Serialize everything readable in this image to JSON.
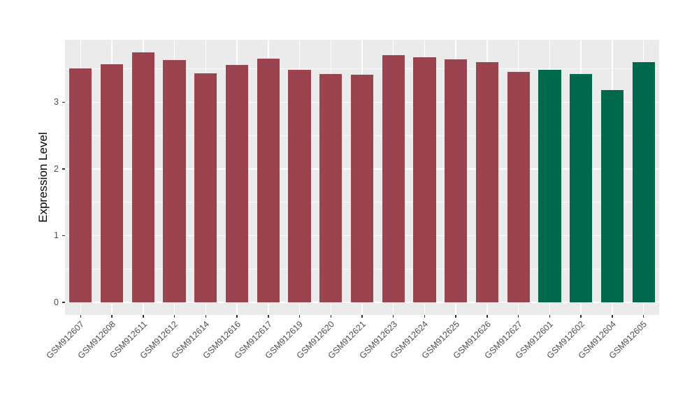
{
  "chart_data": {
    "type": "bar",
    "title": "",
    "xlabel": "",
    "ylabel": "Expression Level",
    "categories": [
      "GSM912607",
      "GSM912608",
      "GSM912611",
      "GSM912612",
      "GSM912614",
      "GSM912616",
      "GSM912617",
      "GSM912619",
      "GSM912620",
      "GSM912621",
      "GSM912623",
      "GSM912624",
      "GSM912625",
      "GSM912626",
      "GSM912627",
      "GSM912601",
      "GSM912602",
      "GSM912604",
      "GSM912605"
    ],
    "values": [
      3.51,
      3.57,
      3.75,
      3.63,
      3.43,
      3.56,
      3.65,
      3.49,
      3.42,
      3.41,
      3.71,
      3.68,
      3.64,
      3.6,
      3.46,
      3.49,
      3.42,
      3.18,
      3.6
    ],
    "bar_group_index": [
      0,
      0,
      0,
      0,
      0,
      0,
      0,
      0,
      0,
      0,
      0,
      0,
      0,
      0,
      0,
      1,
      1,
      1,
      1
    ],
    "group_colors": [
      "#9B4450",
      "#00694B"
    ],
    "yticks": [
      0,
      1,
      2,
      3
    ],
    "ytick_labels": [
      "0",
      "1",
      "2",
      "3"
    ],
    "minor_yticks": [
      0.5,
      1.5,
      2.5,
      3.5
    ],
    "ylim": [
      -0.19,
      3.94
    ],
    "grid": "on",
    "legend": "none",
    "x_tick_rotation_deg": 45,
    "bar_width_ratio": 0.72,
    "colors": {
      "figure_bg": "#FFFFFF",
      "panel_bg": "#EBEBEB",
      "grid": "#FFFFFF",
      "axis_text": "#4D4D4D",
      "tick_mark": "#333333",
      "axis_title": "#000000"
    }
  }
}
